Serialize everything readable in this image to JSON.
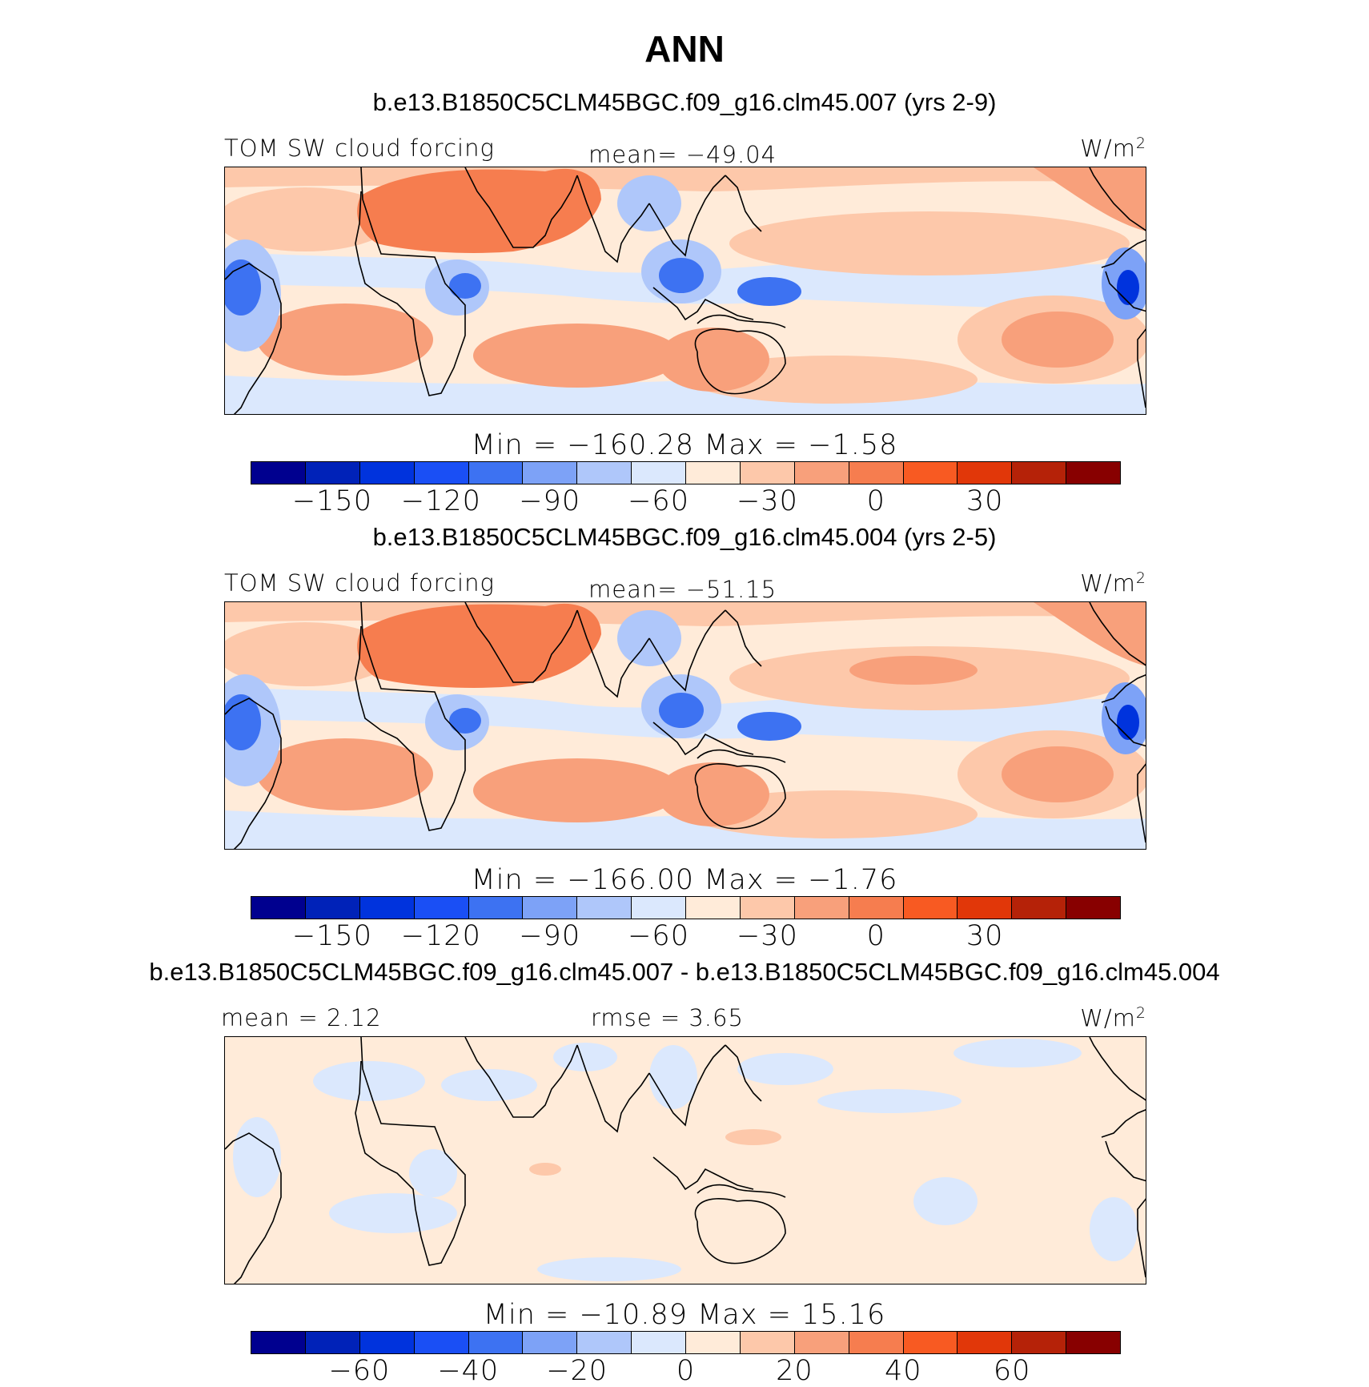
{
  "title": "ANN",
  "colors": [
    "#00008f",
    "#0022b8",
    "#0033dd",
    "#1a4ff5",
    "#3d72f2",
    "#7da2f7",
    "#afc7fa",
    "#dbe8fd",
    "#ffebd9",
    "#fdc8aa",
    "#f8a07b",
    "#f67d4f",
    "#f85a22",
    "#e13709",
    "#b52208",
    "#880000"
  ],
  "panels": [
    {
      "subtitle": "b.e13.B1850C5CLM45BGC.f09_g16.clm45.007 (yrs 2-9)",
      "left_label": "TOM SW cloud forcing",
      "mid_label": "mean= −49.04",
      "units": "W/m",
      "units_sup": "2",
      "minmax": "Min = −160.28 Max =  −1.58",
      "ticks": [
        "−150",
        "−120",
        "−90",
        "−60",
        "−30",
        "0",
        "30"
      ],
      "tick_boxes": [
        1.5,
        3.5,
        5.5,
        7.5,
        9.5,
        11.5,
        13.5
      ],
      "variant": "model"
    },
    {
      "subtitle": "b.e13.B1850C5CLM45BGC.f09_g16.clm45.004 (yrs 2-5)",
      "left_label": "TOM SW cloud forcing",
      "mid_label": "mean= −51.15",
      "units": "W/m",
      "units_sup": "2",
      "minmax": "Min = −166.00 Max =  −1.76",
      "ticks": [
        "−150",
        "−120",
        "−90",
        "−60",
        "−30",
        "0",
        "30"
      ],
      "tick_boxes": [
        1.5,
        3.5,
        5.5,
        7.5,
        9.5,
        11.5,
        13.5
      ],
      "variant": "model"
    },
    {
      "subtitle": "b.e13.B1850C5CLM45BGC.f09_g16.clm45.007 - b.e13.B1850C5CLM45BGC.f09_g16.clm45.004",
      "left_label": "mean =   2.12",
      "mid_label": "rmse =   3.65",
      "units": "W/m",
      "units_sup": "2",
      "minmax": "Min = −10.89 Max =  15.16",
      "ticks": [
        "−60",
        "−40",
        "−20",
        "0",
        "20",
        "40",
        "60"
      ],
      "tick_boxes": [
        2,
        4,
        6,
        8,
        10,
        12,
        14
      ],
      "variant": "diff"
    }
  ]
}
